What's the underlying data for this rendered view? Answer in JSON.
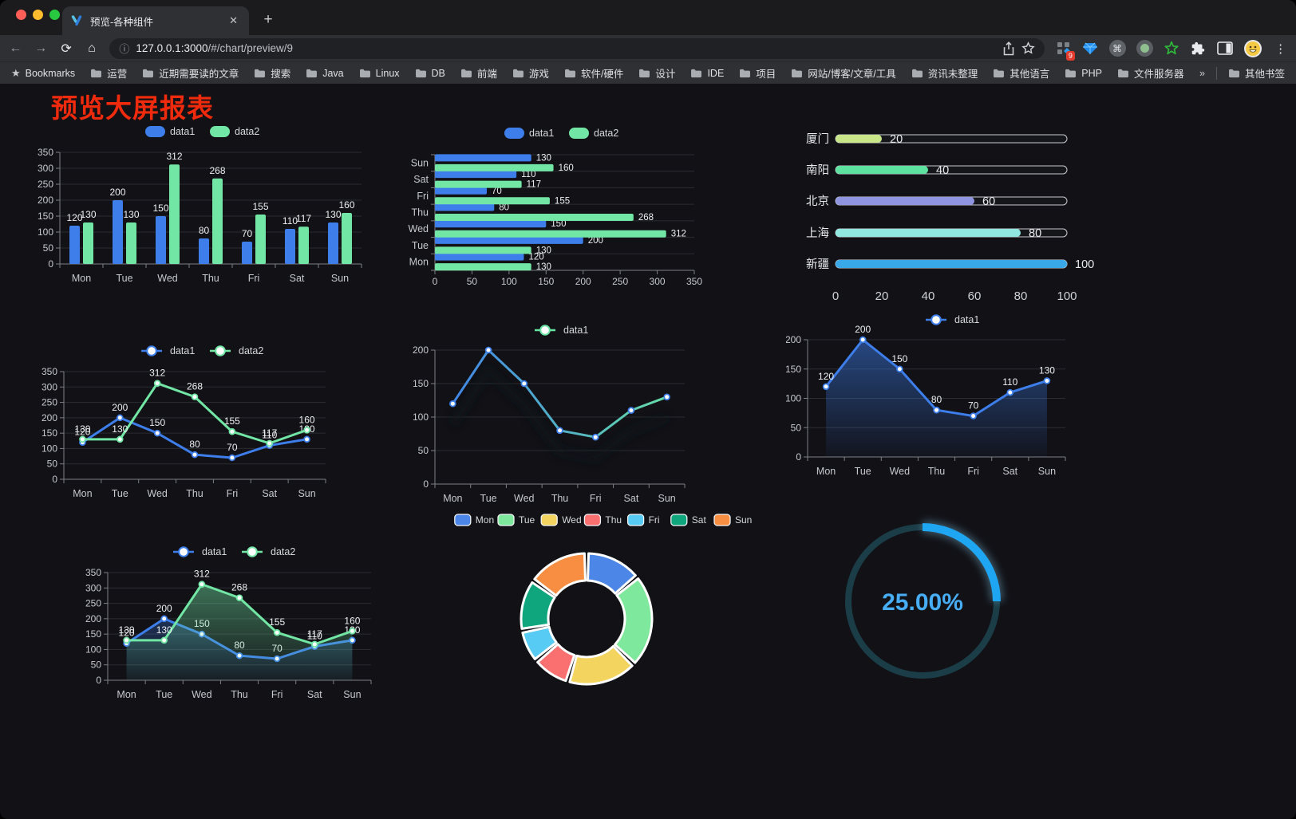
{
  "browser": {
    "tab_title": "预览-各种组件",
    "url_host": "127.0.0.1:3000",
    "url_path": "/#/chart/preview/9",
    "extension_badge": "9",
    "traffic_lights": [
      "#ff5f57",
      "#febc2e",
      "#28c840"
    ],
    "bookmarks_label": "Bookmarks",
    "bookmarks": [
      "运营",
      "近期需要读的文章",
      "搜索",
      "Java",
      "Linux",
      "DB",
      "前端",
      "游戏",
      "软件/硬件",
      "设计",
      "IDE",
      "项目",
      "网站/博客/文章/工具",
      "资讯未整理",
      "其他语言",
      "PHP",
      "文件服务器"
    ],
    "overflow_chevron": "»",
    "other_bookmarks": "其他书签"
  },
  "page": {
    "title": "预览大屏报表",
    "title_color": "#f02a0c"
  },
  "colors": {
    "axis": "#7d8186",
    "grid": "#2b2d32",
    "tick": "#c6c9ce",
    "label": "#eef0f2",
    "legend_text": "#d6d9dc",
    "data1": "#3D7EEB",
    "data2": "#72E6A4"
  },
  "chart_data": [
    {
      "id": "bar-grouped",
      "type": "bar",
      "categories": [
        "Mon",
        "Tue",
        "Wed",
        "Thu",
        "Fri",
        "Sat",
        "Sun"
      ],
      "series": [
        {
          "name": "data1",
          "color": "#3D7EEB",
          "values": [
            120,
            200,
            150,
            80,
            70,
            110,
            130
          ]
        },
        {
          "name": "data2",
          "color": "#72E6A4",
          "values": [
            130,
            130,
            312,
            268,
            155,
            117,
            160
          ]
        }
      ],
      "ylim": [
        0,
        350
      ],
      "ytick": 50,
      "labels": true,
      "legend_position": "top"
    },
    {
      "id": "hbar-grouped",
      "type": "hbar",
      "categories": [
        "Mon",
        "Tue",
        "Wed",
        "Thu",
        "Fri",
        "Sat",
        "Sun"
      ],
      "series": [
        {
          "name": "data1",
          "color": "#3D7EEB",
          "values": [
            120,
            200,
            150,
            80,
            70,
            110,
            130
          ]
        },
        {
          "name": "data2",
          "color": "#72E6A4",
          "values": [
            130,
            130,
            312,
            268,
            155,
            117,
            160
          ]
        }
      ],
      "xlim": [
        0,
        350
      ],
      "xtick": 50,
      "labels": true,
      "legend_position": "top"
    },
    {
      "id": "progress-bars",
      "type": "progress",
      "categories": [
        "厦门",
        "南阳",
        "北京",
        "上海",
        "新疆"
      ],
      "values": [
        20,
        40,
        60,
        80,
        100
      ],
      "colors": [
        "#C8E587",
        "#5EE2A0",
        "#9095E2",
        "#90E8E0",
        "#39A8E8"
      ],
      "xlim": [
        0,
        100
      ],
      "xticks": [
        0,
        20,
        40,
        60,
        80,
        100
      ]
    },
    {
      "id": "line-dual",
      "type": "line",
      "categories": [
        "Mon",
        "Tue",
        "Wed",
        "Thu",
        "Fri",
        "Sat",
        "Sun"
      ],
      "series": [
        {
          "name": "data1",
          "color": "#3D7EEB",
          "values": [
            120,
            200,
            150,
            80,
            70,
            110,
            130
          ]
        },
        {
          "name": "data2",
          "color": "#72E6A4",
          "values": [
            130,
            130,
            312,
            268,
            155,
            117,
            160
          ]
        }
      ],
      "ylim": [
        0,
        350
      ],
      "ytick": 50,
      "labels": true,
      "legend_position": "top"
    },
    {
      "id": "line-gradient",
      "type": "line",
      "categories": [
        "Mon",
        "Tue",
        "Wed",
        "Thu",
        "Fri",
        "Sat",
        "Sun"
      ],
      "series": [
        {
          "name": "data1",
          "color": "#3D7EEB",
          "gradient": [
            "#3D7EEB",
            "#68E3A2"
          ],
          "shadow": true,
          "values": [
            120,
            200,
            150,
            80,
            70,
            110,
            130
          ]
        }
      ],
      "ylim": [
        0,
        200
      ],
      "ytick": 50,
      "labels": false,
      "legend_position": "top"
    },
    {
      "id": "area-single",
      "type": "line",
      "categories": [
        "Mon",
        "Tue",
        "Wed",
        "Thu",
        "Fri",
        "Sat",
        "Sun"
      ],
      "series": [
        {
          "name": "data1",
          "color": "#3D7EEB",
          "area": true,
          "values": [
            120,
            200,
            150,
            80,
            70,
            110,
            130
          ]
        }
      ],
      "ylim": [
        0,
        200
      ],
      "ytick": 50,
      "labels": true,
      "legend_position": "top"
    },
    {
      "id": "area-dual",
      "type": "line",
      "categories": [
        "Mon",
        "Tue",
        "Wed",
        "Thu",
        "Fri",
        "Sat",
        "Sun"
      ],
      "series": [
        {
          "name": "data1",
          "color": "#3D7EEB",
          "area": true,
          "values": [
            120,
            200,
            150,
            80,
            70,
            110,
            130
          ]
        },
        {
          "name": "data2",
          "color": "#72E6A4",
          "area": true,
          "values": [
            130,
            130,
            312,
            268,
            155,
            117,
            160
          ]
        }
      ],
      "ylim": [
        0,
        350
      ],
      "ytick": 50,
      "labels": true,
      "legend_position": "top"
    },
    {
      "id": "donut",
      "type": "donut",
      "categories": [
        "Mon",
        "Tue",
        "Wed",
        "Thu",
        "Fri",
        "Sat",
        "Sun"
      ],
      "values": [
        120,
        200,
        150,
        80,
        70,
        110,
        130
      ],
      "colors": [
        "#4C87E8",
        "#7EE99C",
        "#F3D45F",
        "#FA6F6F",
        "#58CBF5",
        "#0FA67E",
        "#F78E41"
      ],
      "legend_position": "top"
    },
    {
      "id": "gauge",
      "type": "gauge",
      "percent": 25,
      "label": "25.00%",
      "color": "#1FA6F2",
      "track_color": "#1B3D47",
      "text_color": "#47AEF5"
    }
  ]
}
